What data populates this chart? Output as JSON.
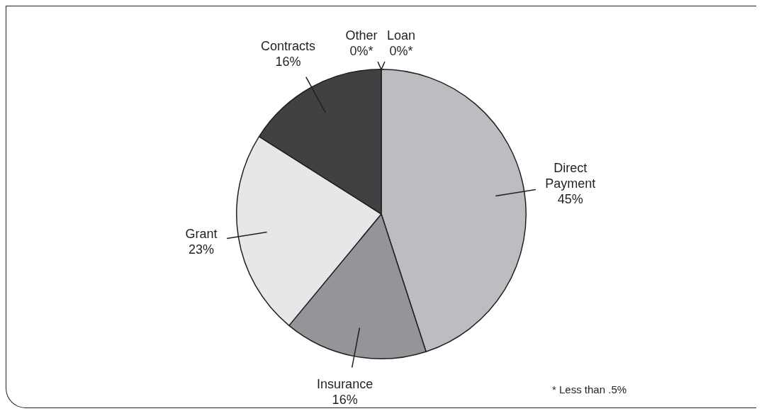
{
  "chart_data": {
    "type": "pie",
    "categories": [
      "Loan",
      "Direct Payment",
      "Insurance",
      "Grant",
      "Contracts",
      "Other"
    ],
    "values": [
      0,
      45,
      16,
      23,
      16,
      0
    ],
    "colors": [
      "#d1d3d4",
      "#bcbdc0",
      "#939598",
      "#e6e7e8",
      "#414042",
      "#808285"
    ],
    "value_labels": [
      "0%*",
      "45%",
      "16%",
      "23%",
      "16%",
      "0%*"
    ],
    "annotations": [
      "* Less than .5%"
    ]
  }
}
